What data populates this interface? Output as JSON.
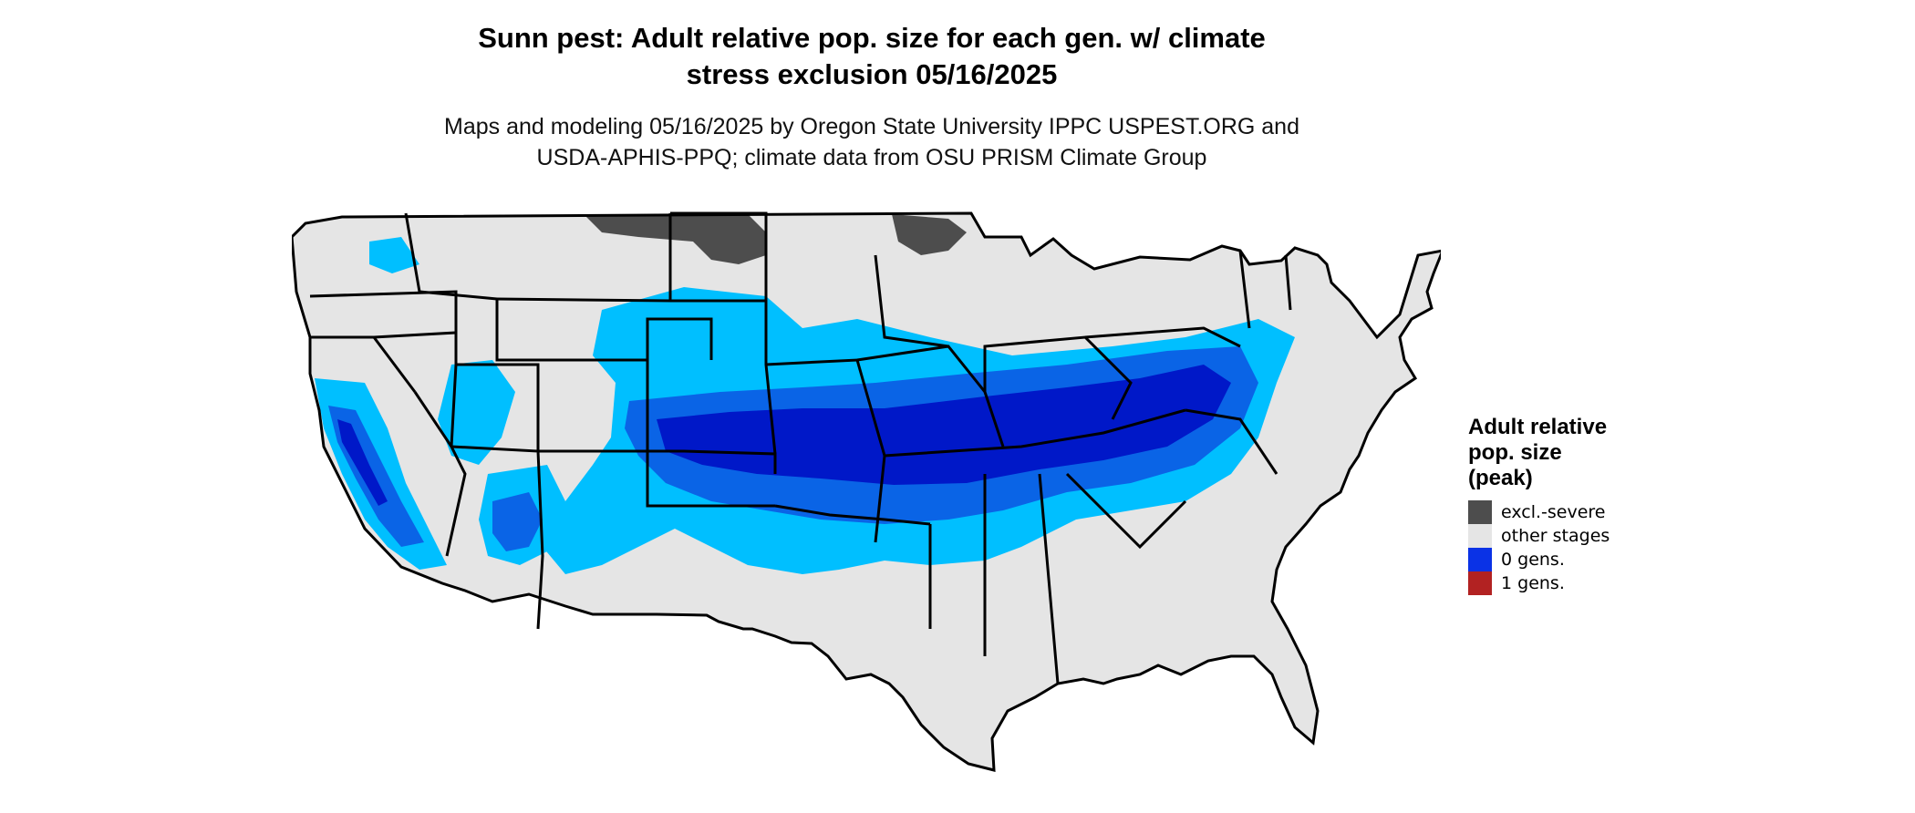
{
  "title": {
    "line1": "Sunn pest: Adult relative pop. size for each gen. w/ climate",
    "line2": "stress exclusion 05/16/2025"
  },
  "subtitle": {
    "line1": "Maps and modeling 05/16/2025 by Oregon State University IPPC USPEST.ORG and",
    "line2": "USDA-APHIS-PPQ; climate data from OSU PRISM Climate Group"
  },
  "map": {
    "colors": {
      "background_land": "#e5e5e5",
      "excluded_severe": "#4d4d4d",
      "light_blue": "#00bfff",
      "mid_blue": "#0a64e6",
      "dark_blue": "#0018c8",
      "border": "#000000"
    }
  },
  "legend": {
    "title_line1": "Adult relative",
    "title_line2": "pop. size",
    "title_line3": "(peak)",
    "items": [
      {
        "label": "excl.-severe",
        "color": "#4d4d4d"
      },
      {
        "label": "other stages",
        "color": "#e5e5e5"
      },
      {
        "label": "0 gens.",
        "color": "#0a32e6"
      },
      {
        "label": "1 gens.",
        "color": "#b22222"
      }
    ]
  }
}
